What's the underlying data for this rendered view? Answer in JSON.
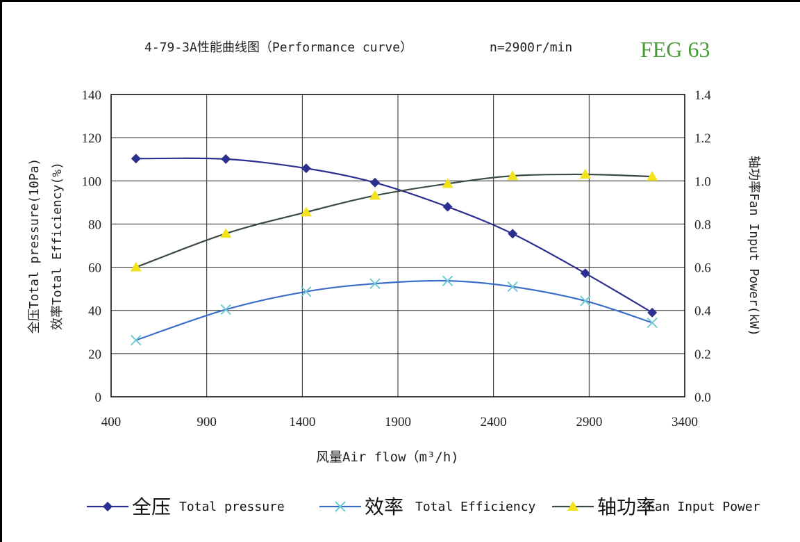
{
  "chart_data": {
    "type": "line",
    "title": "4-79-3A性能曲线图（Performance curve）",
    "subtitle": "n=2900r/min",
    "model_label": "FEG 63",
    "xlabel": "风量Air flow（m³/h)",
    "ylabel_left_line1": "全压Total pressure(10Pa)",
    "ylabel_left_line2": "效率Total Efficiency(%)",
    "ylabel_right": "轴功率Fan Input Power(kW)",
    "xlim": [
      400,
      3400
    ],
    "ylim_left": [
      0,
      140
    ],
    "ylim_right": [
      0.0,
      1.4
    ],
    "x_ticks": [
      "400",
      "900",
      "1400",
      "1900",
      "2400",
      "2900",
      "3400"
    ],
    "y_left_ticks": [
      "0",
      "20",
      "40",
      "60",
      "80",
      "100",
      "120",
      "140"
    ],
    "y_right_ticks": [
      "0.0",
      "0.2",
      "0.4",
      "0.6",
      "0.8",
      "1.0",
      "1.2",
      "1.4"
    ],
    "grid": true,
    "legend_position": "bottom",
    "series": [
      {
        "name": "全压",
        "legend_label": "Total pressure",
        "axis": "left",
        "marker": "diamond",
        "line_color": "#2b2f8f",
        "marker_color": "#2b2f8f",
        "x": [
          530,
          1000,
          1420,
          1780,
          2160,
          2500,
          2880,
          3230
        ],
        "y": [
          110.3,
          110.1,
          105.8,
          99.2,
          88.0,
          75.5,
          57.2,
          39.0
        ]
      },
      {
        "name": "效率",
        "legend_label": "Total Efficiency",
        "axis": "left",
        "marker": "x",
        "line_color": "#3a6ec6",
        "marker_color": "#6fc9d4",
        "x": [
          530,
          1000,
          1420,
          1780,
          2160,
          2500,
          2880,
          3230
        ],
        "y": [
          26.2,
          40.4,
          48.7,
          52.4,
          53.7,
          51.0,
          44.4,
          34.3
        ]
      },
      {
        "name": "轴功率",
        "legend_label": "Fan Input Power",
        "axis": "right",
        "marker": "triangle",
        "line_color": "#3b4a44",
        "marker_color": "#f4e21a",
        "x": [
          530,
          1000,
          1420,
          1780,
          2160,
          2500,
          2880,
          3230
        ],
        "y": [
          0.6,
          0.756,
          0.855,
          0.932,
          0.987,
          1.023,
          1.03,
          1.02
        ]
      }
    ]
  }
}
